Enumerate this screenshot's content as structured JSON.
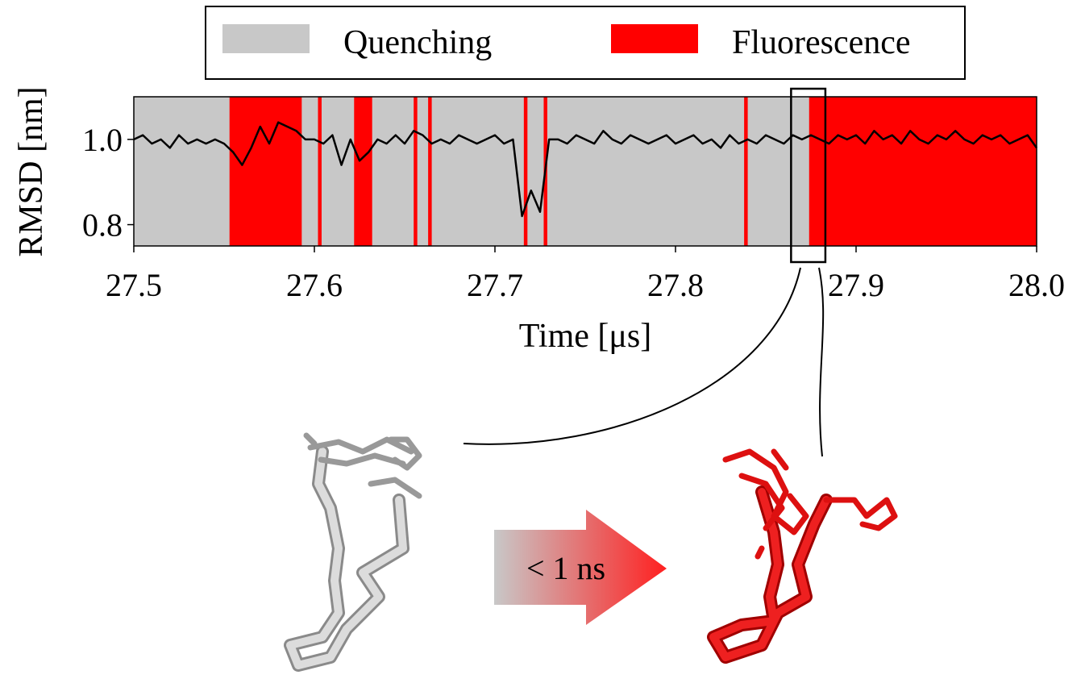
{
  "chart_data": {
    "type": "line",
    "xlabel": "Time [μs]",
    "ylabel": "RMSD [nm]",
    "xlim": [
      27.5,
      28.0
    ],
    "ylim": [
      0.75,
      1.1
    ],
    "xticks": [
      27.5,
      27.6,
      27.7,
      27.8,
      27.9,
      {
        "value": 28,
        "label": "28.0"
      }
    ],
    "yticks": [
      0.8,
      {
        "value": 1,
        "label": "1.0"
      }
    ],
    "legend": [
      {
        "name": "Quenching",
        "color": "#c8c8c8"
      },
      {
        "name": "Fluorescence",
        "color": "#ff0000"
      }
    ],
    "fluorescence_intervals": [
      [
        27.553,
        27.593
      ],
      [
        27.602,
        27.604
      ],
      [
        27.622,
        27.632
      ],
      [
        27.655,
        27.657
      ],
      [
        27.663,
        27.665
      ],
      [
        27.716,
        27.718
      ],
      [
        27.727,
        27.729
      ],
      [
        27.838,
        27.84
      ],
      [
        27.874,
        28.0
      ]
    ],
    "zoom": [
      27.864,
      27.883
    ],
    "line": {
      "color": "#000000",
      "x": [
        27.5,
        27.505,
        27.51,
        27.515,
        27.52,
        27.525,
        27.53,
        27.535,
        27.54,
        27.545,
        27.55,
        27.555,
        27.56,
        27.565,
        27.57,
        27.575,
        27.58,
        27.585,
        27.59,
        27.595,
        27.6,
        27.605,
        27.61,
        27.615,
        27.62,
        27.625,
        27.63,
        27.635,
        27.64,
        27.645,
        27.65,
        27.655,
        27.66,
        27.665,
        27.67,
        27.675,
        27.68,
        27.685,
        27.69,
        27.695,
        27.7,
        27.705,
        27.71,
        27.715,
        27.72,
        27.725,
        27.73,
        27.735,
        27.74,
        27.745,
        27.75,
        27.755,
        27.76,
        27.765,
        27.77,
        27.775,
        27.78,
        27.785,
        27.79,
        27.795,
        27.8,
        27.805,
        27.81,
        27.815,
        27.82,
        27.825,
        27.83,
        27.835,
        27.84,
        27.845,
        27.85,
        27.855,
        27.86,
        27.865,
        27.87,
        27.875,
        27.88,
        27.885,
        27.89,
        27.895,
        27.9,
        27.905,
        27.91,
        27.915,
        27.92,
        27.925,
        27.93,
        27.935,
        27.94,
        27.945,
        27.95,
        27.955,
        27.96,
        27.965,
        27.97,
        27.975,
        27.98,
        27.985,
        27.99,
        27.995,
        28.0
      ],
      "values": [
        1.0,
        1.01,
        0.99,
        1.0,
        0.98,
        1.01,
        0.99,
        1.0,
        0.99,
        1.0,
        0.99,
        0.97,
        0.94,
        0.98,
        1.03,
        0.99,
        1.04,
        1.03,
        1.02,
        1.0,
        1.0,
        0.99,
        1.01,
        0.94,
        1.0,
        0.95,
        0.97,
        1.0,
        0.99,
        1.01,
        0.99,
        1.02,
        1.01,
        0.99,
        1.0,
        0.99,
        1.01,
        1.0,
        0.99,
        1.0,
        1.01,
        0.99,
        1.0,
        0.82,
        0.88,
        0.83,
        1.0,
        1.0,
        0.99,
        1.01,
        1.0,
        0.99,
        1.02,
        1.0,
        0.99,
        1.01,
        1.0,
        0.99,
        1.0,
        1.01,
        0.99,
        1.0,
        1.01,
        0.99,
        1.0,
        0.98,
        1.01,
        0.99,
        1.0,
        0.99,
        1.01,
        1.0,
        0.99,
        1.01,
        1.0,
        1.01,
        1.0,
        0.99,
        1.01,
        1.0,
        1.01,
        0.99,
        1.02,
        1.0,
        1.01,
        0.99,
        1.02,
        1.0,
        0.99,
        1.01,
        1.0,
        1.02,
        1.0,
        0.99,
        1.01,
        1.0,
        1.01,
        0.99,
        1.0,
        1.01,
        0.98
      ]
    },
    "arrow_label": "< 1 ns"
  }
}
